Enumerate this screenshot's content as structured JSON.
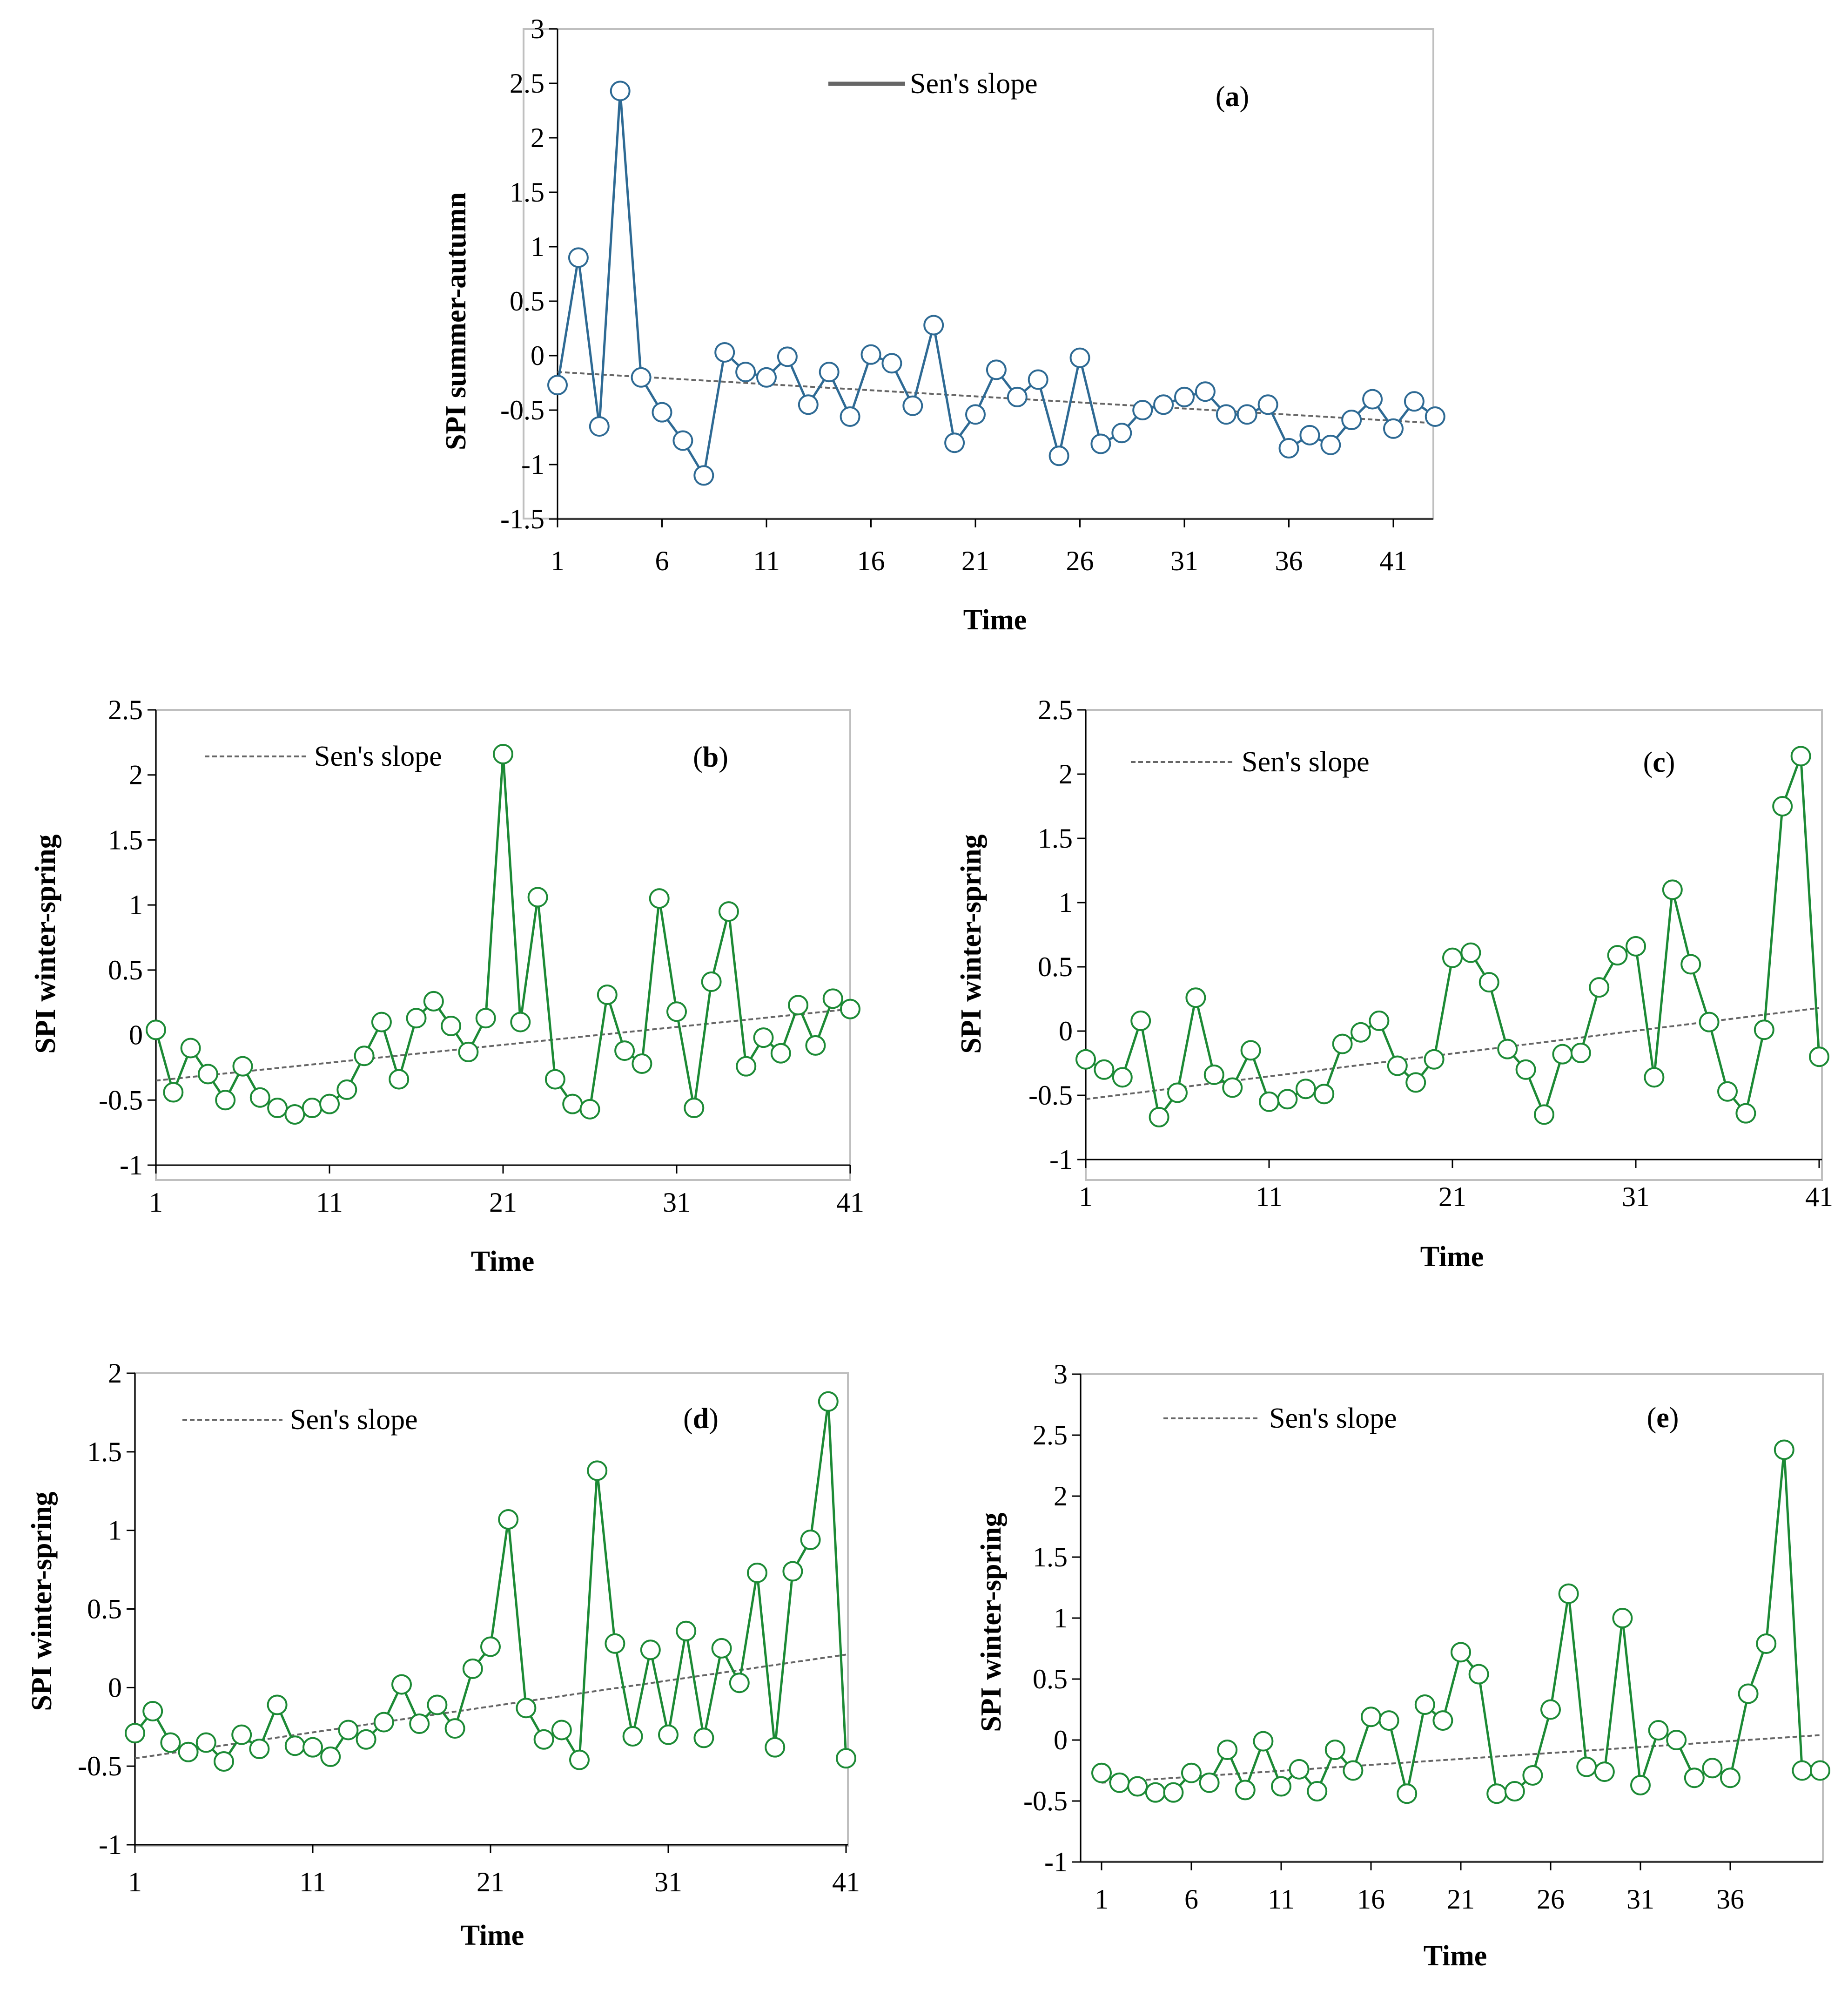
{
  "colors": {
    "series_a": "#2e6a94",
    "series_green": "#1c8a35",
    "trend": "#666666",
    "frame": "#bfbfbf"
  },
  "chart_data": [
    {
      "id": "a",
      "type": "line",
      "panel_label": "(a)",
      "xlabel": "Time",
      "ylabel": "SPI summer-autumn",
      "legend": "Sen's slope",
      "ylim": [
        -1.5,
        3
      ],
      "yticks": [
        -1.5,
        -1,
        -0.5,
        0,
        0.5,
        1,
        1.5,
        2,
        2.5,
        3
      ],
      "ytick_labels": [
        "-1.5",
        "-1",
        "-0.5",
        "0",
        "0.5",
        "1",
        "1.5",
        "2",
        "2.5",
        "3"
      ],
      "xlim": [
        1,
        43
      ],
      "xticks": [
        1,
        6,
        11,
        16,
        21,
        26,
        31,
        36,
        41
      ],
      "x": [
        1,
        2,
        3,
        4,
        5,
        6,
        7,
        8,
        9,
        10,
        11,
        12,
        13,
        14,
        15,
        16,
        17,
        18,
        19,
        20,
        21,
        22,
        23,
        24,
        25,
        26,
        27,
        28,
        29,
        30,
        31,
        32,
        33,
        34,
        35,
        36,
        37,
        38,
        39,
        40,
        41,
        42,
        43
      ],
      "values": [
        -0.27,
        0.9,
        -0.65,
        2.43,
        -0.2,
        -0.52,
        -0.78,
        -1.1,
        0.03,
        -0.15,
        -0.2,
        -0.01,
        -0.45,
        -0.15,
        -0.56,
        0.01,
        -0.07,
        -0.46,
        0.28,
        -0.8,
        -0.54,
        -0.13,
        -0.38,
        -0.22,
        -0.92,
        -0.02,
        -0.81,
        -0.71,
        -0.5,
        -0.45,
        -0.38,
        -0.33,
        -0.54,
        -0.54,
        -0.45,
        -0.85,
        -0.73,
        -0.82,
        -0.59,
        -0.4,
        -0.67,
        -0.42,
        -0.56
      ],
      "trend": [
        -0.15,
        -0.62
      ]
    },
    {
      "id": "b",
      "type": "line",
      "panel_label": "(b)",
      "xlabel": "Time",
      "ylabel": "SPI winter-spring",
      "legend": "Sen's slope",
      "ylim": [
        -1,
        2.5
      ],
      "yticks": [
        -1,
        -0.5,
        0,
        0.5,
        1,
        1.5,
        2,
        2.5
      ],
      "ytick_labels": [
        "-1",
        "-0.5",
        "0",
        "0.5",
        "1",
        "1.5",
        "2",
        "2.5"
      ],
      "xlim": [
        1,
        41
      ],
      "xticks": [
        1,
        11,
        21,
        31,
        41
      ],
      "x": [
        1,
        2,
        3,
        4,
        5,
        6,
        7,
        8,
        9,
        10,
        11,
        12,
        13,
        14,
        15,
        16,
        17,
        18,
        19,
        20,
        21,
        22,
        23,
        24,
        25,
        26,
        27,
        28,
        29,
        30,
        31,
        32,
        33,
        34,
        35,
        36,
        37,
        38,
        39,
        40,
        41
      ],
      "values": [
        0.04,
        -0.44,
        -0.1,
        -0.3,
        -0.5,
        -0.24,
        -0.48,
        -0.56,
        -0.61,
        -0.56,
        -0.53,
        -0.42,
        -0.16,
        0.1,
        -0.34,
        0.13,
        0.26,
        0.07,
        -0.13,
        0.13,
        2.16,
        0.1,
        1.06,
        -0.34,
        -0.53,
        -0.57,
        0.31,
        -0.12,
        -0.22,
        1.05,
        0.18,
        -0.56,
        0.41,
        0.95,
        -0.24,
        -0.02,
        -0.14,
        0.23,
        -0.08,
        0.28,
        0.2
      ],
      "trend": [
        -0.35,
        0.2
      ]
    },
    {
      "id": "c",
      "type": "line",
      "panel_label": "(c)",
      "xlabel": "Time",
      "ylabel": "SPI winter-spring",
      "legend": "Sen's slope",
      "ylim": [
        -1,
        2.5
      ],
      "yticks": [
        -1,
        -0.5,
        0,
        0.5,
        1,
        1.5,
        2,
        2.5
      ],
      "ytick_labels": [
        "-1",
        "-0.5",
        "0",
        "0.5",
        "1",
        "1.5",
        "2",
        "2.5"
      ],
      "xlim": [
        1,
        41
      ],
      "xticks": [
        1,
        11,
        21,
        31,
        41
      ],
      "x": [
        1,
        2,
        3,
        4,
        5,
        6,
        7,
        8,
        9,
        10,
        11,
        12,
        13,
        14,
        15,
        16,
        17,
        18,
        19,
        20,
        21,
        22,
        23,
        24,
        25,
        26,
        27,
        28,
        29,
        30,
        31,
        32,
        33,
        34,
        35,
        36,
        37,
        38,
        39,
        40,
        41
      ],
      "values": [
        -0.22,
        -0.3,
        -0.36,
        0.08,
        -0.67,
        -0.48,
        0.26,
        -0.34,
        -0.44,
        -0.15,
        -0.55,
        -0.53,
        -0.45,
        -0.49,
        -0.1,
        -0.01,
        0.08,
        -0.27,
        -0.4,
        -0.22,
        0.57,
        0.61,
        0.38,
        -0.14,
        -0.3,
        -0.65,
        -0.18,
        -0.17,
        0.34,
        0.59,
        0.66,
        -0.36,
        1.1,
        0.52,
        0.07,
        -0.47,
        -0.64,
        0.01,
        1.75,
        2.14,
        -0.2
      ],
      "trend": [
        -0.53,
        0.18
      ]
    },
    {
      "id": "d",
      "type": "line",
      "panel_label": "(d)",
      "xlabel": "Time",
      "ylabel": "SPI winter-spring",
      "legend": "Sen's slope",
      "ylim": [
        -1,
        2
      ],
      "yticks": [
        -1,
        -0.5,
        0,
        0.5,
        1,
        1.5,
        2
      ],
      "ytick_labels": [
        "-1",
        "-0.5",
        "0",
        "0.5",
        "1",
        "1.5",
        "2"
      ],
      "xlim": [
        1,
        41
      ],
      "xticks": [
        1,
        11,
        21,
        31,
        41
      ],
      "x": [
        1,
        2,
        3,
        4,
        5,
        6,
        7,
        8,
        9,
        10,
        11,
        12,
        13,
        14,
        15,
        16,
        17,
        18,
        19,
        20,
        21,
        22,
        23,
        24,
        25,
        26,
        27,
        28,
        29,
        30,
        31,
        32,
        33,
        34,
        35,
        36,
        37,
        38,
        39,
        40,
        41
      ],
      "values": [
        -0.29,
        -0.15,
        -0.35,
        -0.41,
        -0.35,
        -0.47,
        -0.3,
        -0.39,
        -0.11,
        -0.37,
        -0.38,
        -0.44,
        -0.27,
        -0.33,
        -0.22,
        0.02,
        -0.23,
        -0.11,
        -0.26,
        0.12,
        0.26,
        1.07,
        -0.13,
        -0.33,
        -0.27,
        -0.46,
        1.38,
        0.28,
        -0.31,
        0.24,
        -0.3,
        0.36,
        -0.32,
        0.25,
        0.03,
        0.73,
        -0.38,
        0.74,
        0.94,
        1.82,
        -0.45
      ],
      "trend": [
        -0.45,
        0.21
      ]
    },
    {
      "id": "e",
      "type": "line",
      "panel_label": "(e)",
      "xlabel": "Time",
      "ylabel": "SPI winter-spring",
      "legend": "Sen's slope",
      "ylim": [
        -1,
        3
      ],
      "yticks": [
        -1,
        -0.5,
        0,
        0.5,
        1,
        1.5,
        2,
        2.5,
        3
      ],
      "ytick_labels": [
        "-1",
        "-0.5",
        "0",
        "0.5",
        "1",
        "1.5",
        "2",
        "2.5",
        "3"
      ],
      "xlim": [
        1,
        41
      ],
      "xticks": [
        1,
        6,
        11,
        16,
        21,
        26,
        31,
        36
      ],
      "x": [
        1,
        2,
        3,
        4,
        5,
        6,
        7,
        8,
        9,
        10,
        11,
        12,
        13,
        14,
        15,
        16,
        17,
        18,
        19,
        20,
        21,
        22,
        23,
        24,
        25,
        26,
        27,
        28,
        29,
        30,
        31,
        32,
        33,
        34,
        35,
        36,
        37,
        38,
        39,
        40,
        41
      ],
      "values": [
        -0.27,
        -0.35,
        -0.38,
        -0.43,
        -0.43,
        -0.27,
        -0.35,
        -0.08,
        -0.41,
        -0.01,
        -0.38,
        -0.24,
        -0.42,
        -0.08,
        -0.25,
        0.19,
        0.16,
        -0.44,
        0.29,
        0.16,
        0.72,
        0.54,
        -0.44,
        -0.42,
        -0.29,
        0.25,
        1.2,
        -0.22,
        -0.26,
        1.0,
        -0.37,
        0.08,
        0.0,
        -0.31,
        -0.23,
        -0.31,
        0.38,
        0.79,
        2.38,
        -0.25,
        -0.25
      ],
      "trend": [
        -0.35,
        0.04
      ]
    }
  ]
}
